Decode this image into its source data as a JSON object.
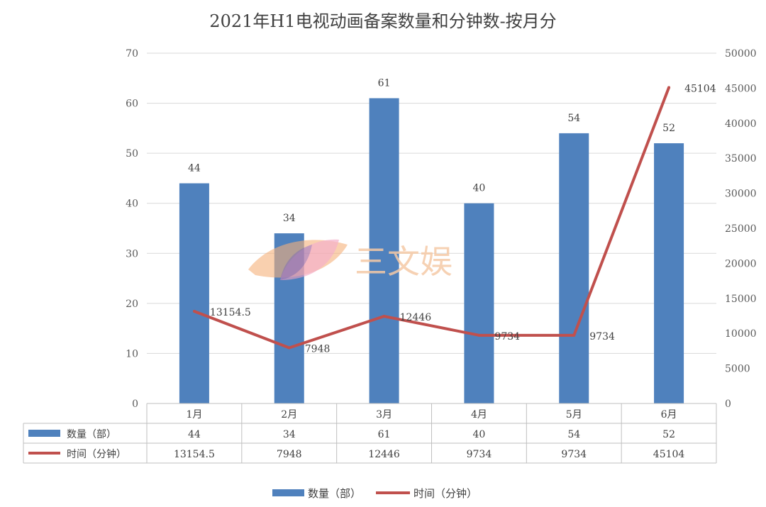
{
  "chart_data": {
    "type": "bar",
    "title": "2021年H1电视动画备案数量和分钟数-按月分",
    "categories": [
      "1月",
      "2月",
      "3月",
      "4月",
      "5月",
      "6月"
    ],
    "series": [
      {
        "name": "数量（部）",
        "type": "bar",
        "axis": "left",
        "color": "#4f81bd",
        "values": [
          44,
          34,
          61,
          40,
          54,
          52
        ],
        "labels": [
          "44",
          "34",
          "61",
          "40",
          "54",
          "52"
        ]
      },
      {
        "name": "时间（分钟）",
        "type": "line",
        "axis": "right",
        "color": "#c0504d",
        "values": [
          13154.5,
          7948,
          12446,
          9734,
          9734,
          45104
        ],
        "labels": [
          "13154.5",
          "7948",
          "12446",
          "9734",
          "9734",
          "45104"
        ]
      }
    ],
    "y_left": {
      "min": 0,
      "max": 70,
      "step": 10,
      "ticks": [
        "0",
        "10",
        "20",
        "30",
        "40",
        "50",
        "60",
        "70"
      ]
    },
    "y_right": {
      "min": 0,
      "max": 50000,
      "step": 5000,
      "ticks": [
        "0",
        "5000",
        "10000",
        "15000",
        "20000",
        "25000",
        "30000",
        "35000",
        "40000",
        "45000",
        "50000"
      ]
    },
    "grid": true,
    "data_table": true,
    "legend": "bottom"
  },
  "watermark": {
    "text": "三文娱"
  }
}
